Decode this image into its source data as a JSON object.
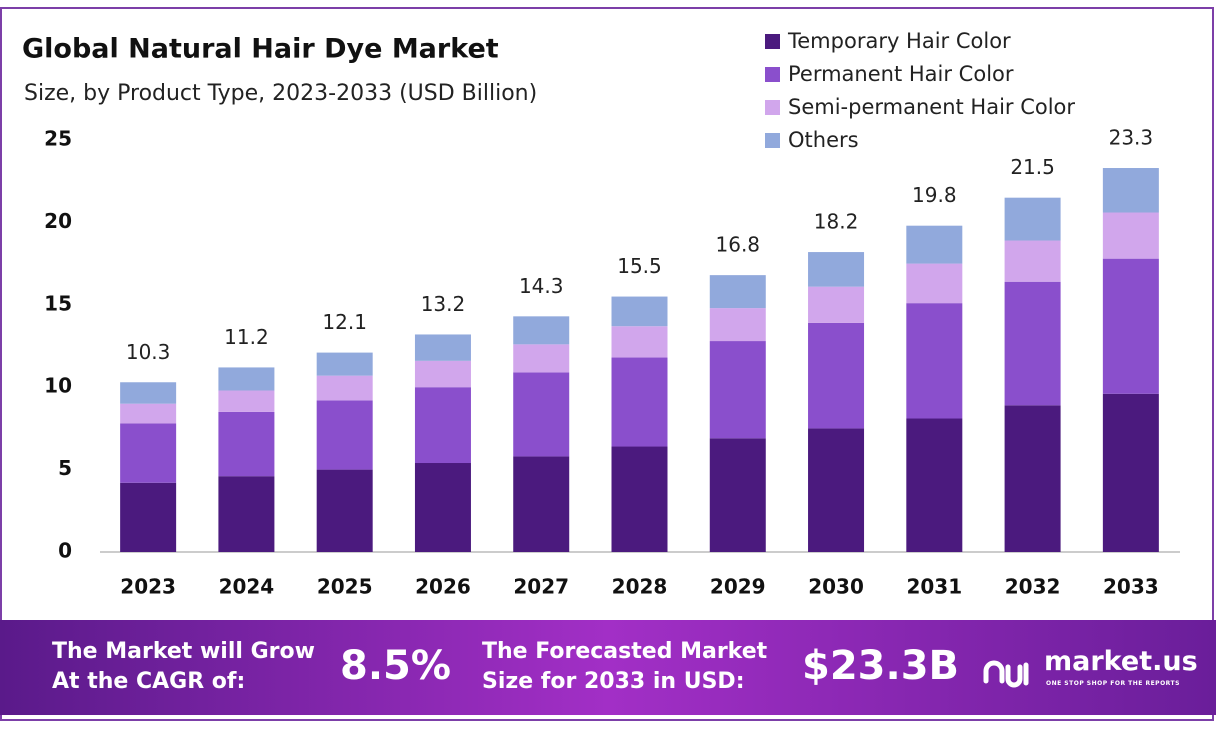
{
  "chart_data": {
    "type": "stacked_bar",
    "title": "Global Natural Hair Dye Market",
    "subtitle": "Size, by Product Type, 2023-2033 (USD Billion)",
    "categories": [
      "2023",
      "2024",
      "2025",
      "2026",
      "2027",
      "2028",
      "2029",
      "2030",
      "2031",
      "2032",
      "2033"
    ],
    "series": [
      {
        "name": "Temporary Hair Color",
        "color": "#4b1a7e",
        "values": [
          4.2,
          4.6,
          5.0,
          5.4,
          5.8,
          6.4,
          6.9,
          7.5,
          8.1,
          8.9,
          9.6
        ]
      },
      {
        "name": "Permanent Hair Color",
        "color": "#8a4fcc",
        "values": [
          3.6,
          3.9,
          4.2,
          4.6,
          5.1,
          5.4,
          5.9,
          6.4,
          7.0,
          7.5,
          8.2
        ]
      },
      {
        "name": "Semi-permanent Hair Color",
        "color": "#d1a6ec",
        "values": [
          1.2,
          1.3,
          1.5,
          1.6,
          1.7,
          1.9,
          2.0,
          2.2,
          2.4,
          2.5,
          2.8
        ]
      },
      {
        "name": "Others",
        "color": "#91a9dc",
        "values": [
          1.3,
          1.4,
          1.4,
          1.6,
          1.7,
          1.8,
          2.0,
          2.1,
          2.3,
          2.6,
          2.7
        ]
      }
    ],
    "totals": [
      10.3,
      11.2,
      12.1,
      13.2,
      14.3,
      15.5,
      16.8,
      18.2,
      19.8,
      21.5,
      23.3
    ],
    "ylim": [
      0,
      25
    ],
    "yticks": [
      0,
      5,
      10,
      15,
      20,
      25
    ],
    "grid": false,
    "legend": "top-right"
  },
  "footer": {
    "cagr_label": [
      "The Market will Grow",
      "At the CAGR of:"
    ],
    "cagr_value": "8.5%",
    "size_label": [
      "The Forecasted Market",
      "Size for 2033 in USD:"
    ],
    "size_value": "$23.3B",
    "brand": "market.us",
    "tagline": "ONE STOP SHOP FOR THE REPORTS"
  }
}
